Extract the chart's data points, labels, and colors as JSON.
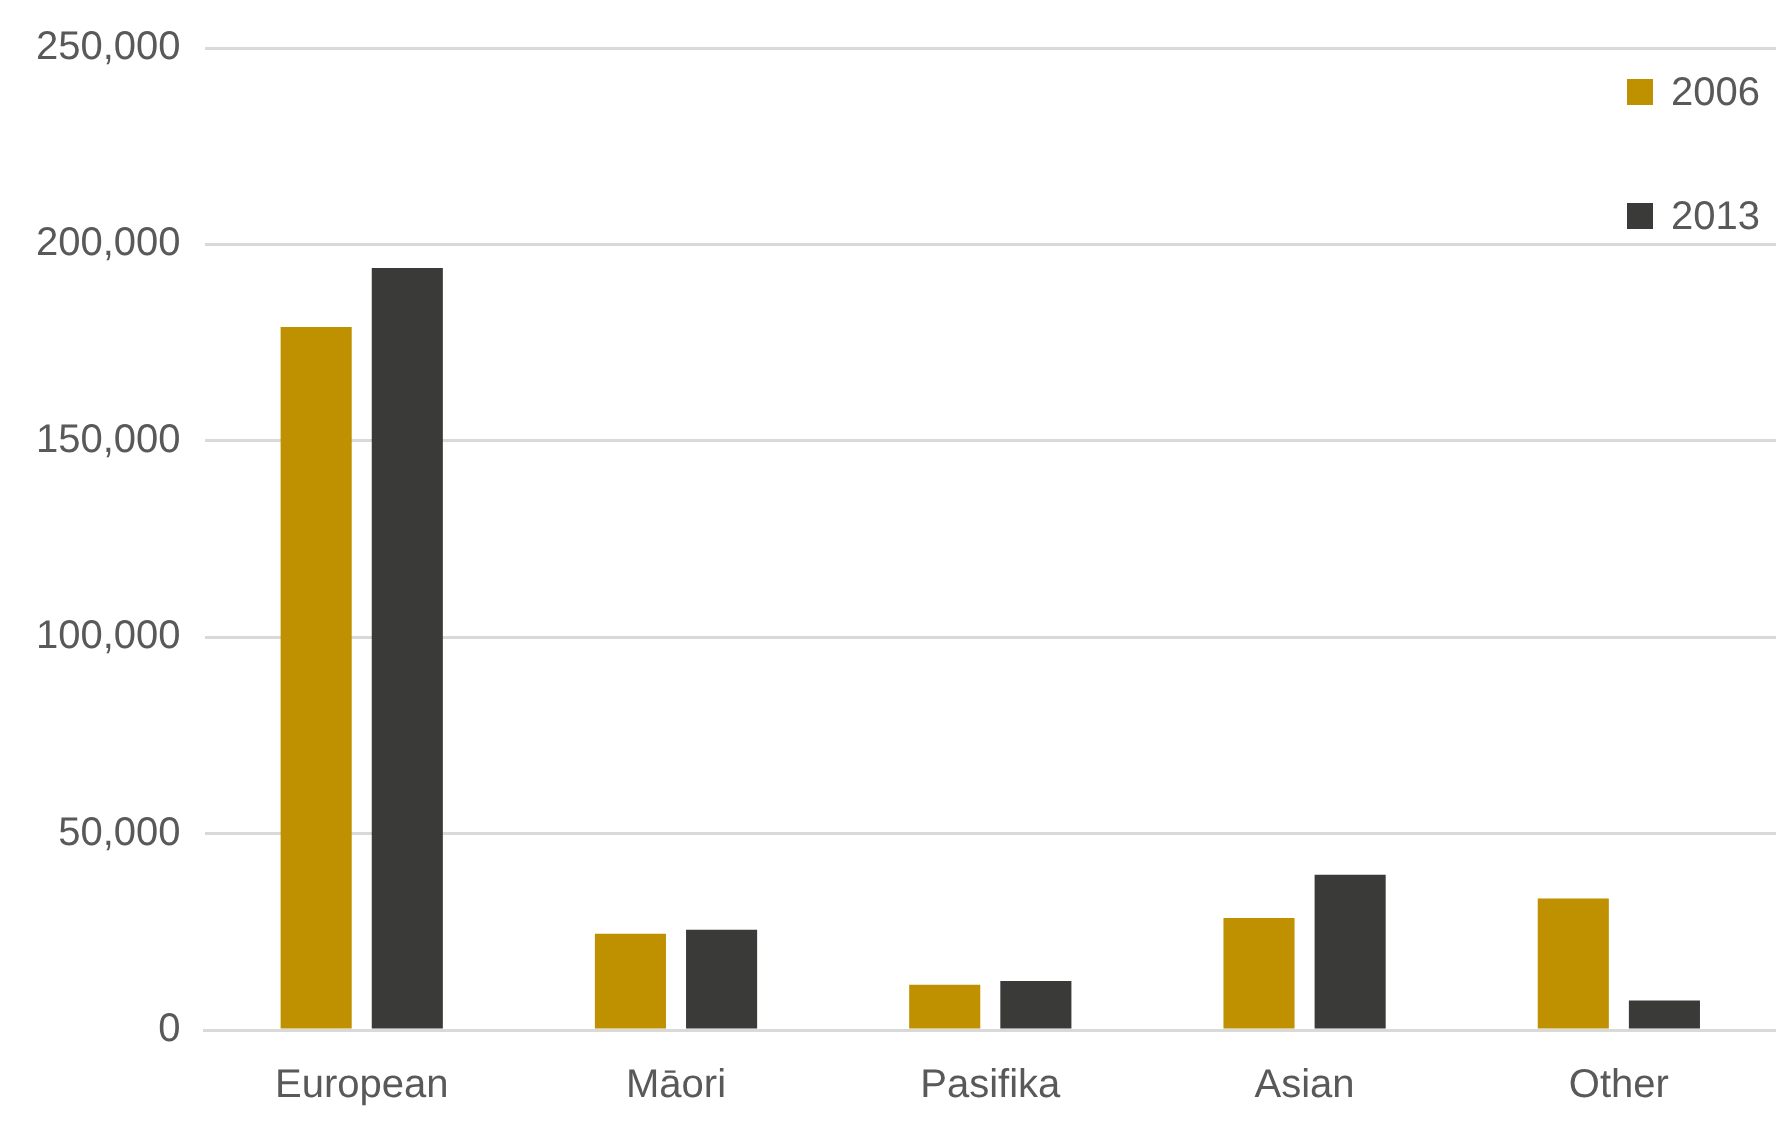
{
  "chart_data": {
    "type": "bar",
    "categories": [
      "European",
      "Māori",
      "Pasifika",
      "Asian",
      "Other"
    ],
    "series": [
      {
        "name": "2006",
        "color": "#bf9000",
        "values": [
          179000,
          24500,
          11500,
          28500,
          33500
        ]
      },
      {
        "name": "2013",
        "color": "#3a3a38",
        "values": [
          194000,
          25500,
          12500,
          39500,
          7500
        ]
      }
    ],
    "ylim": [
      0,
      250000
    ],
    "yticks": [
      {
        "value": 0,
        "label": "0"
      },
      {
        "value": 50000,
        "label": "50,000"
      },
      {
        "value": 100000,
        "label": "100,000"
      },
      {
        "value": 150000,
        "label": "150,000"
      },
      {
        "value": 200000,
        "label": "200,000"
      },
      {
        "value": 250000,
        "label": "250,000"
      }
    ],
    "grid": "y",
    "legend": "top right"
  }
}
